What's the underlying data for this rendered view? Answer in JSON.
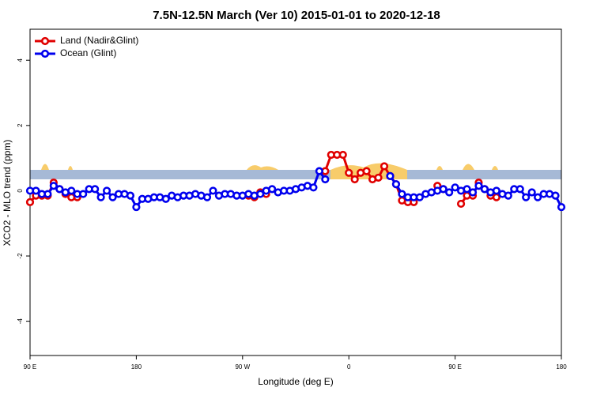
{
  "chart_data": {
    "type": "line",
    "title": "7.5N-12.5N March (Ver 10)   2015-01-01 to 2020-12-18",
    "x_label": "Longitude (deg E)",
    "y_label": "XCO2 - MLO trend (ppm)",
    "x": [
      90,
      95,
      100,
      105,
      110,
      115,
      120,
      125,
      130,
      135,
      140,
      145,
      150,
      155,
      160,
      165,
      170,
      175,
      180,
      185,
      190,
      195,
      200,
      205,
      210,
      215,
      220,
      225,
      230,
      235,
      240,
      245,
      250,
      255,
      260,
      265,
      270,
      275,
      280,
      285,
      290,
      295,
      300,
      305,
      310,
      315,
      320,
      325,
      330,
      335,
      340,
      345,
      350,
      355,
      360,
      365,
      370,
      375,
      380,
      385,
      390,
      395,
      400,
      405,
      410,
      415,
      420,
      425,
      430,
      435,
      440,
      445,
      450,
      455,
      460,
      465,
      470,
      475,
      480,
      485,
      490,
      495,
      500,
      505,
      510,
      515,
      520,
      525,
      530,
      535,
      540
    ],
    "series": [
      {
        "name": "Land (Nadir&Glint)",
        "color": "#e00000",
        "values": [
          -0.35,
          -0.15,
          -0.15,
          -0.15,
          0.25,
          0.05,
          -0.1,
          -0.2,
          -0.2,
          null,
          null,
          null,
          null,
          null,
          null,
          null,
          null,
          null,
          null,
          null,
          null,
          null,
          null,
          null,
          null,
          null,
          null,
          null,
          null,
          null,
          null,
          null,
          null,
          null,
          null,
          null,
          null,
          -0.15,
          -0.2,
          -0.05,
          -0.1,
          null,
          null,
          null,
          null,
          null,
          null,
          null,
          null,
          null,
          0.6,
          1.1,
          1.1,
          1.1,
          0.55,
          0.35,
          0.55,
          0.6,
          0.35,
          0.4,
          0.75,
          0.45,
          0.2,
          -0.3,
          -0.35,
          -0.35,
          null,
          null,
          null,
          0.15,
          0.05,
          null,
          null,
          -0.4,
          -0.15,
          -0.15,
          0.25,
          0.05,
          -0.15,
          -0.2,
          null,
          null,
          null,
          null,
          null,
          null,
          null,
          null,
          null,
          null,
          null
        ]
      },
      {
        "name": "Ocean (Glint)",
        "color": "#0000ee",
        "values": [
          0.0,
          0.0,
          -0.1,
          -0.1,
          0.15,
          0.05,
          -0.05,
          0.0,
          -0.1,
          -0.1,
          0.05,
          0.05,
          -0.2,
          0.0,
          -0.2,
          -0.1,
          -0.1,
          -0.15,
          -0.5,
          -0.25,
          -0.25,
          -0.2,
          -0.2,
          -0.25,
          -0.15,
          -0.2,
          -0.15,
          -0.15,
          -0.1,
          -0.15,
          -0.2,
          0.0,
          -0.15,
          -0.1,
          -0.1,
          -0.15,
          -0.15,
          -0.1,
          -0.15,
          -0.1,
          0.0,
          0.05,
          -0.05,
          0.0,
          0.0,
          0.05,
          0.1,
          0.15,
          0.1,
          0.6,
          0.35,
          null,
          null,
          null,
          null,
          null,
          null,
          null,
          null,
          null,
          null,
          0.45,
          0.2,
          -0.1,
          -0.2,
          -0.2,
          -0.2,
          -0.1,
          -0.05,
          0.0,
          0.05,
          -0.05,
          0.1,
          0.0,
          0.05,
          -0.05,
          0.15,
          0.05,
          -0.05,
          0.0,
          -0.1,
          -0.15,
          0.05,
          0.05,
          -0.2,
          -0.05,
          -0.2,
          -0.1,
          -0.1,
          -0.15,
          -0.5
        ]
      }
    ],
    "xlim": [
      90,
      540
    ],
    "xticks": [
      {
        "value": 90,
        "label": "90 E"
      },
      {
        "value": 180,
        "label": "180"
      },
      {
        "value": 270,
        "label": "90 W"
      },
      {
        "value": 360,
        "label": "0"
      },
      {
        "value": 450,
        "label": "90 E"
      },
      {
        "value": 540,
        "label": "180"
      }
    ],
    "ylim": [
      -5.05,
      4.95
    ],
    "yticks": [
      -4,
      -2,
      0,
      2,
      4
    ],
    "legend": "top-left"
  }
}
